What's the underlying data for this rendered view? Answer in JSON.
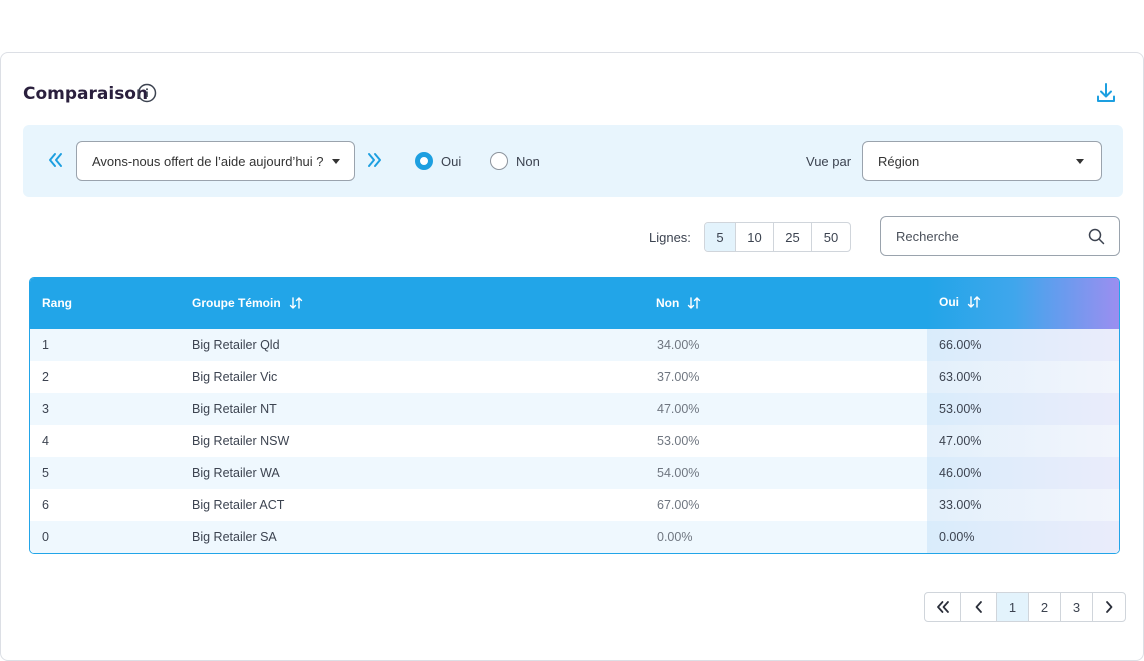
{
  "header": {
    "title": "Comparaison"
  },
  "filters": {
    "question_value": "Avons-nous offert de l’aide aujourd’hui ?",
    "radio_oui_label": "Oui",
    "radio_non_label": "Non",
    "radio_selected": "Oui",
    "vue_par_label": "Vue par",
    "vue_par_value": "Région"
  },
  "controls": {
    "lignes_label": "Lignes:",
    "page_sizes": [
      "5",
      "10",
      "25",
      "50"
    ],
    "page_size_selected": "5",
    "search_placeholder": "Recherche"
  },
  "table": {
    "columns": [
      "Rang",
      "Groupe Témoin",
      "Non",
      "Oui"
    ],
    "rows": [
      {
        "rang": "1",
        "groupe": "Big Retailer Qld",
        "non": "34.00%",
        "oui": "66.00%"
      },
      {
        "rang": "2",
        "groupe": "Big Retailer Vic",
        "non": "37.00%",
        "oui": "63.00%"
      },
      {
        "rang": "3",
        "groupe": "Big Retailer NT",
        "non": "47.00%",
        "oui": "53.00%"
      },
      {
        "rang": "4",
        "groupe": "Big Retailer NSW",
        "non": "53.00%",
        "oui": "47.00%"
      },
      {
        "rang": "5",
        "groupe": "Big Retailer WA",
        "non": "54.00%",
        "oui": "46.00%"
      },
      {
        "rang": "6",
        "groupe": "Big Retailer ACT",
        "non": "67.00%",
        "oui": "33.00%"
      },
      {
        "rang": "0",
        "groupe": "Big Retailer SA",
        "non": "0.00%",
        "oui": "0.00%"
      }
    ]
  },
  "pagination": {
    "pages": [
      "1",
      "2",
      "3"
    ],
    "current": "1"
  },
  "colors": {
    "accent": "#22a5e8",
    "filter_bg": "#e8f5fd",
    "row_alt": "#eff8fe"
  },
  "icons": {
    "info": "info-icon",
    "download": "download-icon",
    "prev": "chevrons-left-icon",
    "next": "chevrons-right-icon",
    "search": "search-icon",
    "sort": "sort-icon"
  }
}
